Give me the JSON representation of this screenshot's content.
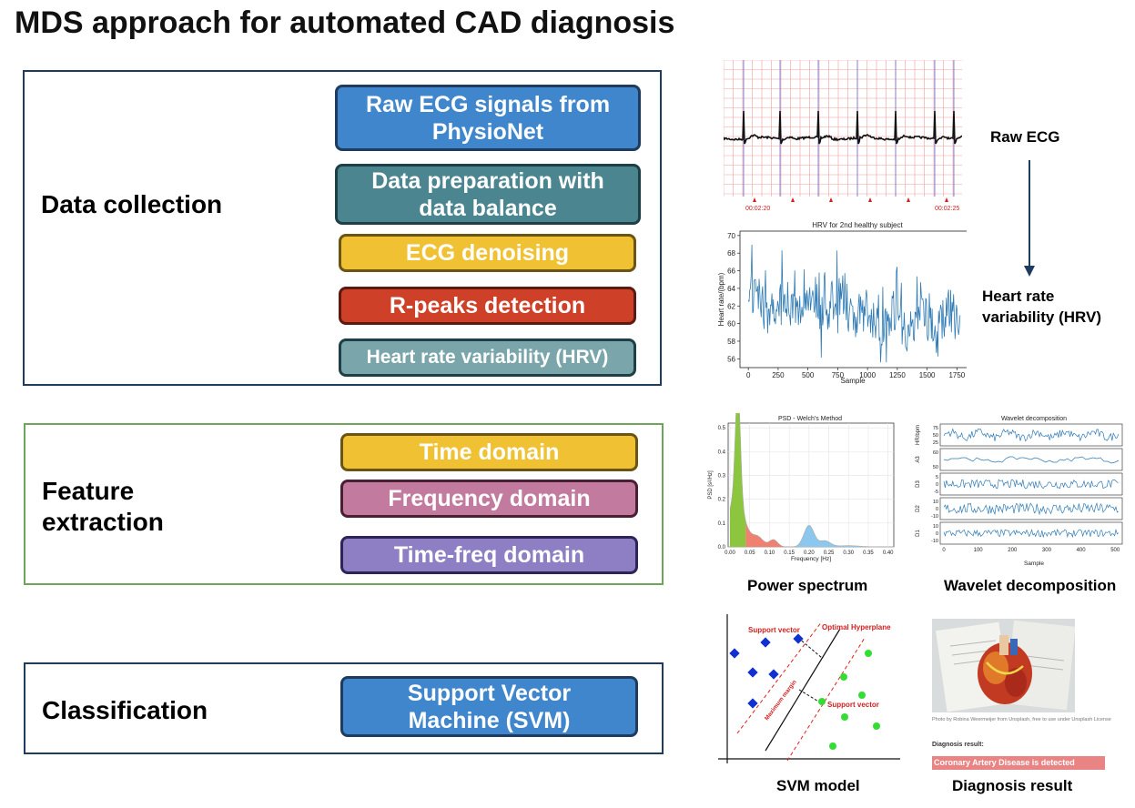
{
  "title": "MDS approach for automated CAD diagnosis",
  "sections": {
    "data_collection": {
      "label": "Data collection",
      "steps": [
        "Raw ECG signals from PhysioNet",
        "Data preparation with data balance",
        "ECG denoising",
        "R-peaks detection",
        "Heart rate variability (HRV)"
      ]
    },
    "feature_extraction": {
      "label": "Feature extraction",
      "steps": [
        "Time domain",
        "Frequency domain",
        "Time-freq domain"
      ]
    },
    "classification": {
      "label": "Classification",
      "steps": [
        "Support Vector Machine (SVM)"
      ]
    }
  },
  "colors": {
    "blue": "#3f86cc",
    "teal": "#4a8590",
    "yellow": "#f0c233",
    "red": "#cf4028",
    "gray_teal": "#7aa5aa",
    "pink": "#c27b9e",
    "purple": "#8e7fc4",
    "dc_border": "#1f3b5e",
    "fe_border": "#6fa55a",
    "plot_blue": "#2f7bb5"
  },
  "figures": {
    "raw_ecg": {
      "caption": "Raw ECG",
      "time_labels": [
        "00:02:20",
        "00:02:25"
      ]
    },
    "hrv": {
      "caption": "Heart rate variability (HRV)",
      "plot_title": "HRV for 2nd healthy subject",
      "xlabel": "Sample",
      "ylabel": "Heart rate/(bpm)",
      "xticks": [
        "0",
        "250",
        "500",
        "750",
        "1000",
        "1250",
        "1500",
        "1750"
      ],
      "yticks": [
        "56",
        "58",
        "60",
        "62",
        "64",
        "66",
        "68",
        "70"
      ]
    },
    "psd": {
      "caption": "Power spectrum",
      "plot_title": "PSD - Welch's Method",
      "xlabel": "Frequency [Hz]",
      "ylabel": "PSD [s²/Hz]",
      "xticks": [
        "0.00",
        "0.05",
        "0.10",
        "0.15",
        "0.20",
        "0.25",
        "0.30",
        "0.35",
        "0.40"
      ],
      "yticks": [
        "0.0",
        "0.1",
        "0.2",
        "0.3",
        "0.4",
        "0.5"
      ]
    },
    "wavelet": {
      "caption": "Wavelet decomposition",
      "plot_title": "Wavelet decomposition",
      "xlabel": "Sample",
      "xticks": [
        "0",
        "100",
        "200",
        "300",
        "400",
        "500"
      ],
      "rows": [
        {
          "label": "HR/bpm",
          "ticks": [
            "75",
            "50",
            "25"
          ]
        },
        {
          "label": "A3",
          "ticks": [
            "60",
            "50"
          ]
        },
        {
          "label": "D3",
          "ticks": [
            "5",
            "0",
            "-5"
          ]
        },
        {
          "label": "D2",
          "ticks": [
            "10",
            "0",
            "-10"
          ]
        },
        {
          "label": "D1",
          "ticks": [
            "10",
            "0",
            "-10"
          ]
        }
      ]
    },
    "svm": {
      "caption": "SVM model",
      "labels": {
        "support_vector_top": "Support vector",
        "hyperplane": "Optimal Hyperplane",
        "support_vector_right": "Support vector",
        "margin": "Maximum margin"
      }
    },
    "diagnosis": {
      "caption": "Diagnosis result",
      "photo_credit": "Photo by Robina Weermeijer from Unsplash, free to use under Unsplash License",
      "result_label": "Diagnosis result:",
      "result_text": "Coronary Artery Disease is detected"
    }
  }
}
